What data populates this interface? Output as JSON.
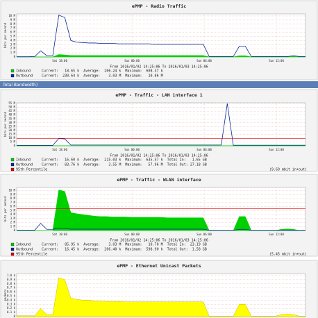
{
  "header_bar": "Total Bandwidth)",
  "chart_data": [
    {
      "type": "line",
      "title": "ePMP - Radio Traffic",
      "y_label": "bits per second",
      "date_range": "From 2016/01/02 14:25:06 To 2016/01/03 14:25:06",
      "xlim": [
        0,
        24
      ],
      "ylim": [
        0,
        10.5
      ],
      "xticks": [
        {
          "value": 3.58,
          "label": "Sat 18:00"
        },
        {
          "value": 9.58,
          "label": "Sun 00:00"
        },
        {
          "value": 15.58,
          "label": "Sun 06:00"
        },
        {
          "value": 21.58,
          "label": "Sun 12:00"
        }
      ],
      "yticks": [
        {
          "value": 0,
          "label": "0"
        },
        {
          "value": 1,
          "label": "1 M"
        },
        {
          "value": 2,
          "label": "2 M"
        },
        {
          "value": 3,
          "label": "3 M"
        },
        {
          "value": 4,
          "label": "4 M"
        },
        {
          "value": 5,
          "label": "5 M"
        },
        {
          "value": 6,
          "label": "6 M"
        },
        {
          "value": 7,
          "label": "7 M"
        },
        {
          "value": 8,
          "label": "8 M"
        },
        {
          "value": 9,
          "label": "9 M"
        },
        {
          "value": 10,
          "label": "10 M"
        }
      ],
      "x": [
        0,
        0.5,
        1,
        1.5,
        2,
        2.5,
        3,
        3.5,
        4,
        4.5,
        5,
        5.5,
        6,
        6.5,
        7,
        7.5,
        8,
        8.5,
        9,
        9.5,
        10,
        10.5,
        11,
        11.5,
        12,
        12.5,
        13,
        13.5,
        14,
        14.5,
        15,
        15.5,
        16,
        16.5,
        17,
        17.5,
        18,
        18.5,
        19,
        19.5,
        20,
        20.5,
        21,
        21.5,
        22,
        22.5,
        23,
        23.5,
        24
      ],
      "series": [
        {
          "name": "Inbound",
          "style": "area",
          "color": "#00cf00",
          "legend_text": "Current:   18.65 k  Average:  206.24 k  Maximum:  608.37 k",
          "values": [
            0,
            0,
            0,
            0,
            0,
            0,
            0,
            0.6,
            0.5,
            0.35,
            0.35,
            0.35,
            0.35,
            0.35,
            0.35,
            0.35,
            0.35,
            0.35,
            0.35,
            0.35,
            0.35,
            0.35,
            0.35,
            0.35,
            0.35,
            0.35,
            0.35,
            0.35,
            0.35,
            0.35,
            0.35,
            0.35,
            0,
            0,
            0,
            0,
            0,
            0.3,
            0.3,
            0,
            0,
            0,
            0,
            0,
            0,
            0,
            0.2,
            0,
            0
          ]
        },
        {
          "name": "Outbound",
          "style": "line",
          "color": "#002a97",
          "legend_text": "Current:  230.64 k  Average:    3.03 M  Maximum:   10.86 M",
          "values": [
            0.05,
            0.05,
            0.05,
            0.1,
            1.5,
            0.3,
            0.3,
            10.2,
            9.6,
            4,
            3.6,
            3.5,
            3.4,
            3.4,
            3.3,
            3.3,
            3.3,
            3.2,
            3.2,
            3.2,
            3.2,
            3.2,
            3.2,
            3.1,
            3.1,
            3.1,
            3.1,
            3.1,
            3.1,
            3.1,
            3.1,
            3.1,
            0.1,
            0.1,
            0.1,
            0.1,
            0.1,
            2.6,
            2.6,
            0.1,
            0.1,
            0.1,
            0.1,
            0.1,
            0.1,
            0.1,
            0.3,
            0.1,
            0.1
          ]
        }
      ]
    },
    {
      "type": "line",
      "title": "ePMP - Traffic - LAN interface 1",
      "y_label": "bits per second",
      "date_range": "From 2016/01/02 14:25:06 To 2016/01/03 14:25:06",
      "xlim": [
        0,
        24
      ],
      "ylim": [
        0,
        56
      ],
      "xticks": [
        {
          "value": 3.58,
          "label": "Sat 18:00"
        },
        {
          "value": 9.58,
          "label": "Sun 00:00"
        },
        {
          "value": 15.58,
          "label": "Sun 06:00"
        },
        {
          "value": 21.58,
          "label": "Sun 12:00"
        }
      ],
      "yticks": [
        {
          "value": 0,
          "label": "0"
        },
        {
          "value": 5,
          "label": "5 M"
        },
        {
          "value": 10,
          "label": "10 M"
        },
        {
          "value": 15,
          "label": "15 M"
        },
        {
          "value": 20,
          "label": "20 M"
        },
        {
          "value": 25,
          "label": "25 M"
        },
        {
          "value": 30,
          "label": "30 M"
        },
        {
          "value": 35,
          "label": "35 M"
        },
        {
          "value": 40,
          "label": "40 M"
        },
        {
          "value": 45,
          "label": "45 M"
        },
        {
          "value": 50,
          "label": "50 M"
        },
        {
          "value": 55,
          "label": "55 M"
        }
      ],
      "x": [
        0,
        0.5,
        1,
        1.5,
        2,
        2.5,
        3,
        3.5,
        4,
        4.5,
        5,
        5.5,
        6,
        6.5,
        7,
        7.5,
        8,
        8.5,
        9,
        9.5,
        10,
        10.5,
        11,
        11.5,
        12,
        12.5,
        13,
        13.5,
        14,
        14.5,
        15,
        15.5,
        16,
        16.5,
        17,
        17.5,
        18,
        18.5,
        19,
        19.5,
        20,
        20.5,
        21,
        21.5,
        22,
        22.5,
        23,
        23.5,
        24
      ],
      "series": [
        {
          "name": "Inbound",
          "style": "area",
          "color": "#00cf00",
          "legend_text": "Current:   16.60 k  Average:  215.03 k  Maximum:  635.57 k  Total In:   1.65 GB",
          "values": [
            0.1,
            0.1,
            0.1,
            0.1,
            0.1,
            0.1,
            0.1,
            0.2,
            0.2,
            0.1,
            0.1,
            0.1,
            0.1,
            0.1,
            0.1,
            0.1,
            0.1,
            0.1,
            0.1,
            0.1,
            0.1,
            0.1,
            0.1,
            0.1,
            0.1,
            0.1,
            0.1,
            0.1,
            0.1,
            0.1,
            0.1,
            0.1,
            0.1,
            0.1,
            0.1,
            0.1,
            0.1,
            0.1,
            0.1,
            0.1,
            0.1,
            0.1,
            0.1,
            0.1,
            0.1,
            0.1,
            0.1,
            0.1,
            0.1
          ]
        },
        {
          "name": "Outbound",
          "style": "line",
          "color": "#002a97",
          "legend_text": "Current:   83.76 k  Average:    3.55 M  Maximum:   57.96 M  Total Out: 27.18 GB",
          "values": [
            0.6,
            0.6,
            0.6,
            0.6,
            0.6,
            0.6,
            0.6,
            9.5,
            9,
            1,
            1,
            1,
            1,
            1,
            1,
            1,
            1,
            1,
            1,
            1,
            1,
            1,
            1,
            1,
            1,
            1,
            1,
            1,
            1,
            1,
            1,
            1,
            1,
            1,
            1,
            55,
            0.8,
            0.8,
            0.8,
            0.8,
            0.8,
            0.8,
            0.8,
            0.8,
            0.8,
            0.8,
            0.8,
            0.8,
            0.8
          ]
        }
      ],
      "percentile": {
        "name": "95th Percentile",
        "color": "#e00000",
        "value": 9.69,
        "value_label": "(9.69 mbit in+out)"
      }
    },
    {
      "type": "line",
      "title": "ePMP - Traffic - WLAN interface",
      "y_label": "bits per second",
      "date_range": "From 2016/01/02 14:25:06 To 2016/01/03 14:25:06",
      "xlim": [
        0,
        24
      ],
      "ylim": [
        0,
        10.8
      ],
      "xticks": [
        {
          "value": 3.58,
          "label": "Sat 18:00"
        },
        {
          "value": 9.58,
          "label": "Sun 00:00"
        },
        {
          "value": 15.58,
          "label": "Sun 06:00"
        },
        {
          "value": 21.58,
          "label": "Sun 12:00"
        }
      ],
      "yticks": [
        {
          "value": 0,
          "label": "0"
        },
        {
          "value": 1,
          "label": "1 M"
        },
        {
          "value": 2,
          "label": "2 M"
        },
        {
          "value": 3,
          "label": "3 M"
        },
        {
          "value": 4,
          "label": "4 M"
        },
        {
          "value": 5,
          "label": "5 M"
        },
        {
          "value": 6,
          "label": "6 M"
        },
        {
          "value": 7,
          "label": "7 M"
        },
        {
          "value": 8,
          "label": "8 M"
        },
        {
          "value": 9,
          "label": "9 M"
        },
        {
          "value": 10,
          "label": "10 M"
        }
      ],
      "x": [
        0,
        0.5,
        1,
        1.5,
        2,
        2.5,
        3,
        3.5,
        4,
        4.5,
        5,
        5.5,
        6,
        6.5,
        7,
        7.5,
        8,
        8.5,
        9,
        9.5,
        10,
        10.5,
        11,
        11.5,
        12,
        12.5,
        13,
        13.5,
        14,
        14.5,
        15,
        15.5,
        16,
        16.5,
        17,
        17.5,
        18,
        18.5,
        19,
        19.5,
        20,
        20.5,
        21,
        21.5,
        22,
        22.5,
        23,
        23.5,
        24
      ],
      "series": [
        {
          "name": "Inbound",
          "style": "area",
          "color": "#00cf00",
          "legend_text": "Current:   85.95 k  Average:    3.03 M  Maximum:   10.70 M  Total In:  23.19 GB",
          "values": [
            0,
            0,
            0,
            0,
            0,
            0,
            0,
            10.2,
            9.8,
            4.5,
            4.2,
            4,
            3.8,
            3.6,
            3.5,
            3.5,
            3.4,
            3.4,
            3.4,
            3.3,
            3.3,
            3.3,
            3.3,
            3.3,
            3.3,
            3.2,
            3.2,
            3.2,
            3.2,
            3.2,
            3.2,
            3.2,
            0,
            0,
            0,
            0,
            0,
            3.5,
            3.5,
            0,
            0,
            0,
            0,
            0,
            0.3,
            0.4,
            0.3,
            0,
            0
          ]
        },
        {
          "name": "Outbound",
          "style": "line",
          "color": "#002a97",
          "legend_text": "Current:   16.45 k  Average:  206.40 k  Maximum:  598.90 k  Total Out:  1.58 GB",
          "values": [
            0.1,
            0.1,
            0.1,
            0.1,
            1.8,
            0.3,
            0.3,
            0.6,
            0.5,
            0.35,
            0.35,
            0.35,
            0.35,
            0.35,
            0.35,
            0.35,
            0.35,
            0.35,
            0.35,
            0.35,
            0.35,
            0.35,
            0.35,
            0.35,
            0.35,
            0.35,
            0.35,
            0.35,
            0.35,
            0.35,
            0.35,
            0.35,
            0.05,
            0.05,
            0.05,
            0.05,
            0.05,
            0.3,
            0.3,
            0.05,
            0.05,
            0.05,
            0.05,
            0.05,
            0.05,
            0.05,
            0.05,
            0.05,
            0.05
          ]
        }
      ],
      "percentile": {
        "name": "95th Percentile",
        "color": "#e00000",
        "value": 5.45,
        "value_label": "(5.45 mbit in+out)"
      }
    },
    {
      "type": "line",
      "title": "ePMP - Ethernet Unicast Packets",
      "y_label": "packets",
      "xlim": [
        0,
        24
      ],
      "ylim": [
        0,
        1.05
      ],
      "yticks": [
        {
          "value": 0,
          "label": "0"
        },
        {
          "value": 0.1,
          "label": "0.1 k"
        },
        {
          "value": 0.2,
          "label": "0.2 k"
        },
        {
          "value": 0.3,
          "label": "0.3 k"
        },
        {
          "value": 0.4,
          "label": "0.4 k"
        },
        {
          "value": 0.5,
          "label": "0.5 k"
        },
        {
          "value": 0.6,
          "label": "0.6 k"
        },
        {
          "value": 0.7,
          "label": "0.7 k"
        },
        {
          "value": 0.8,
          "label": "0.8 k"
        },
        {
          "value": 0.9,
          "label": "0.9 k"
        },
        {
          "value": 1,
          "label": "1.0 k"
        }
      ],
      "x": [
        0,
        0.5,
        1,
        1.5,
        2,
        2.5,
        3,
        3.5,
        4,
        4.5,
        5,
        5.5,
        6,
        6.5,
        7,
        7.5,
        8,
        8.5,
        9,
        9.5,
        10,
        10.5,
        11,
        11.5,
        12,
        12.5,
        13,
        13.5,
        14,
        14.5,
        15,
        15.5,
        16,
        16.5,
        17,
        17.5,
        18,
        18.5,
        19,
        19.5,
        20,
        20.5,
        21,
        21.5,
        22,
        22.5,
        23,
        23.5,
        24
      ],
      "series": [
        {
          "style": "area",
          "color": "#ffff00",
          "values": [
            0.02,
            0.02,
            0.02,
            0.02,
            0.2,
            0.05,
            0.05,
            0.95,
            0.9,
            0.45,
            0.42,
            0.4,
            0.4,
            0.38,
            0.38,
            0.37,
            0.37,
            0.37,
            0.36,
            0.36,
            0.36,
            0.36,
            0.36,
            0.36,
            0.36,
            0.36,
            0.36,
            0.36,
            0.36,
            0.36,
            0.36,
            0.36,
            0.01,
            0.01,
            0.01,
            0.01,
            0.01,
            0.3,
            0.3,
            0.01,
            0.01,
            0.01,
            0.01,
            0.01,
            0.05,
            0.06,
            0.05,
            0.01,
            0.01
          ]
        }
      ]
    }
  ]
}
